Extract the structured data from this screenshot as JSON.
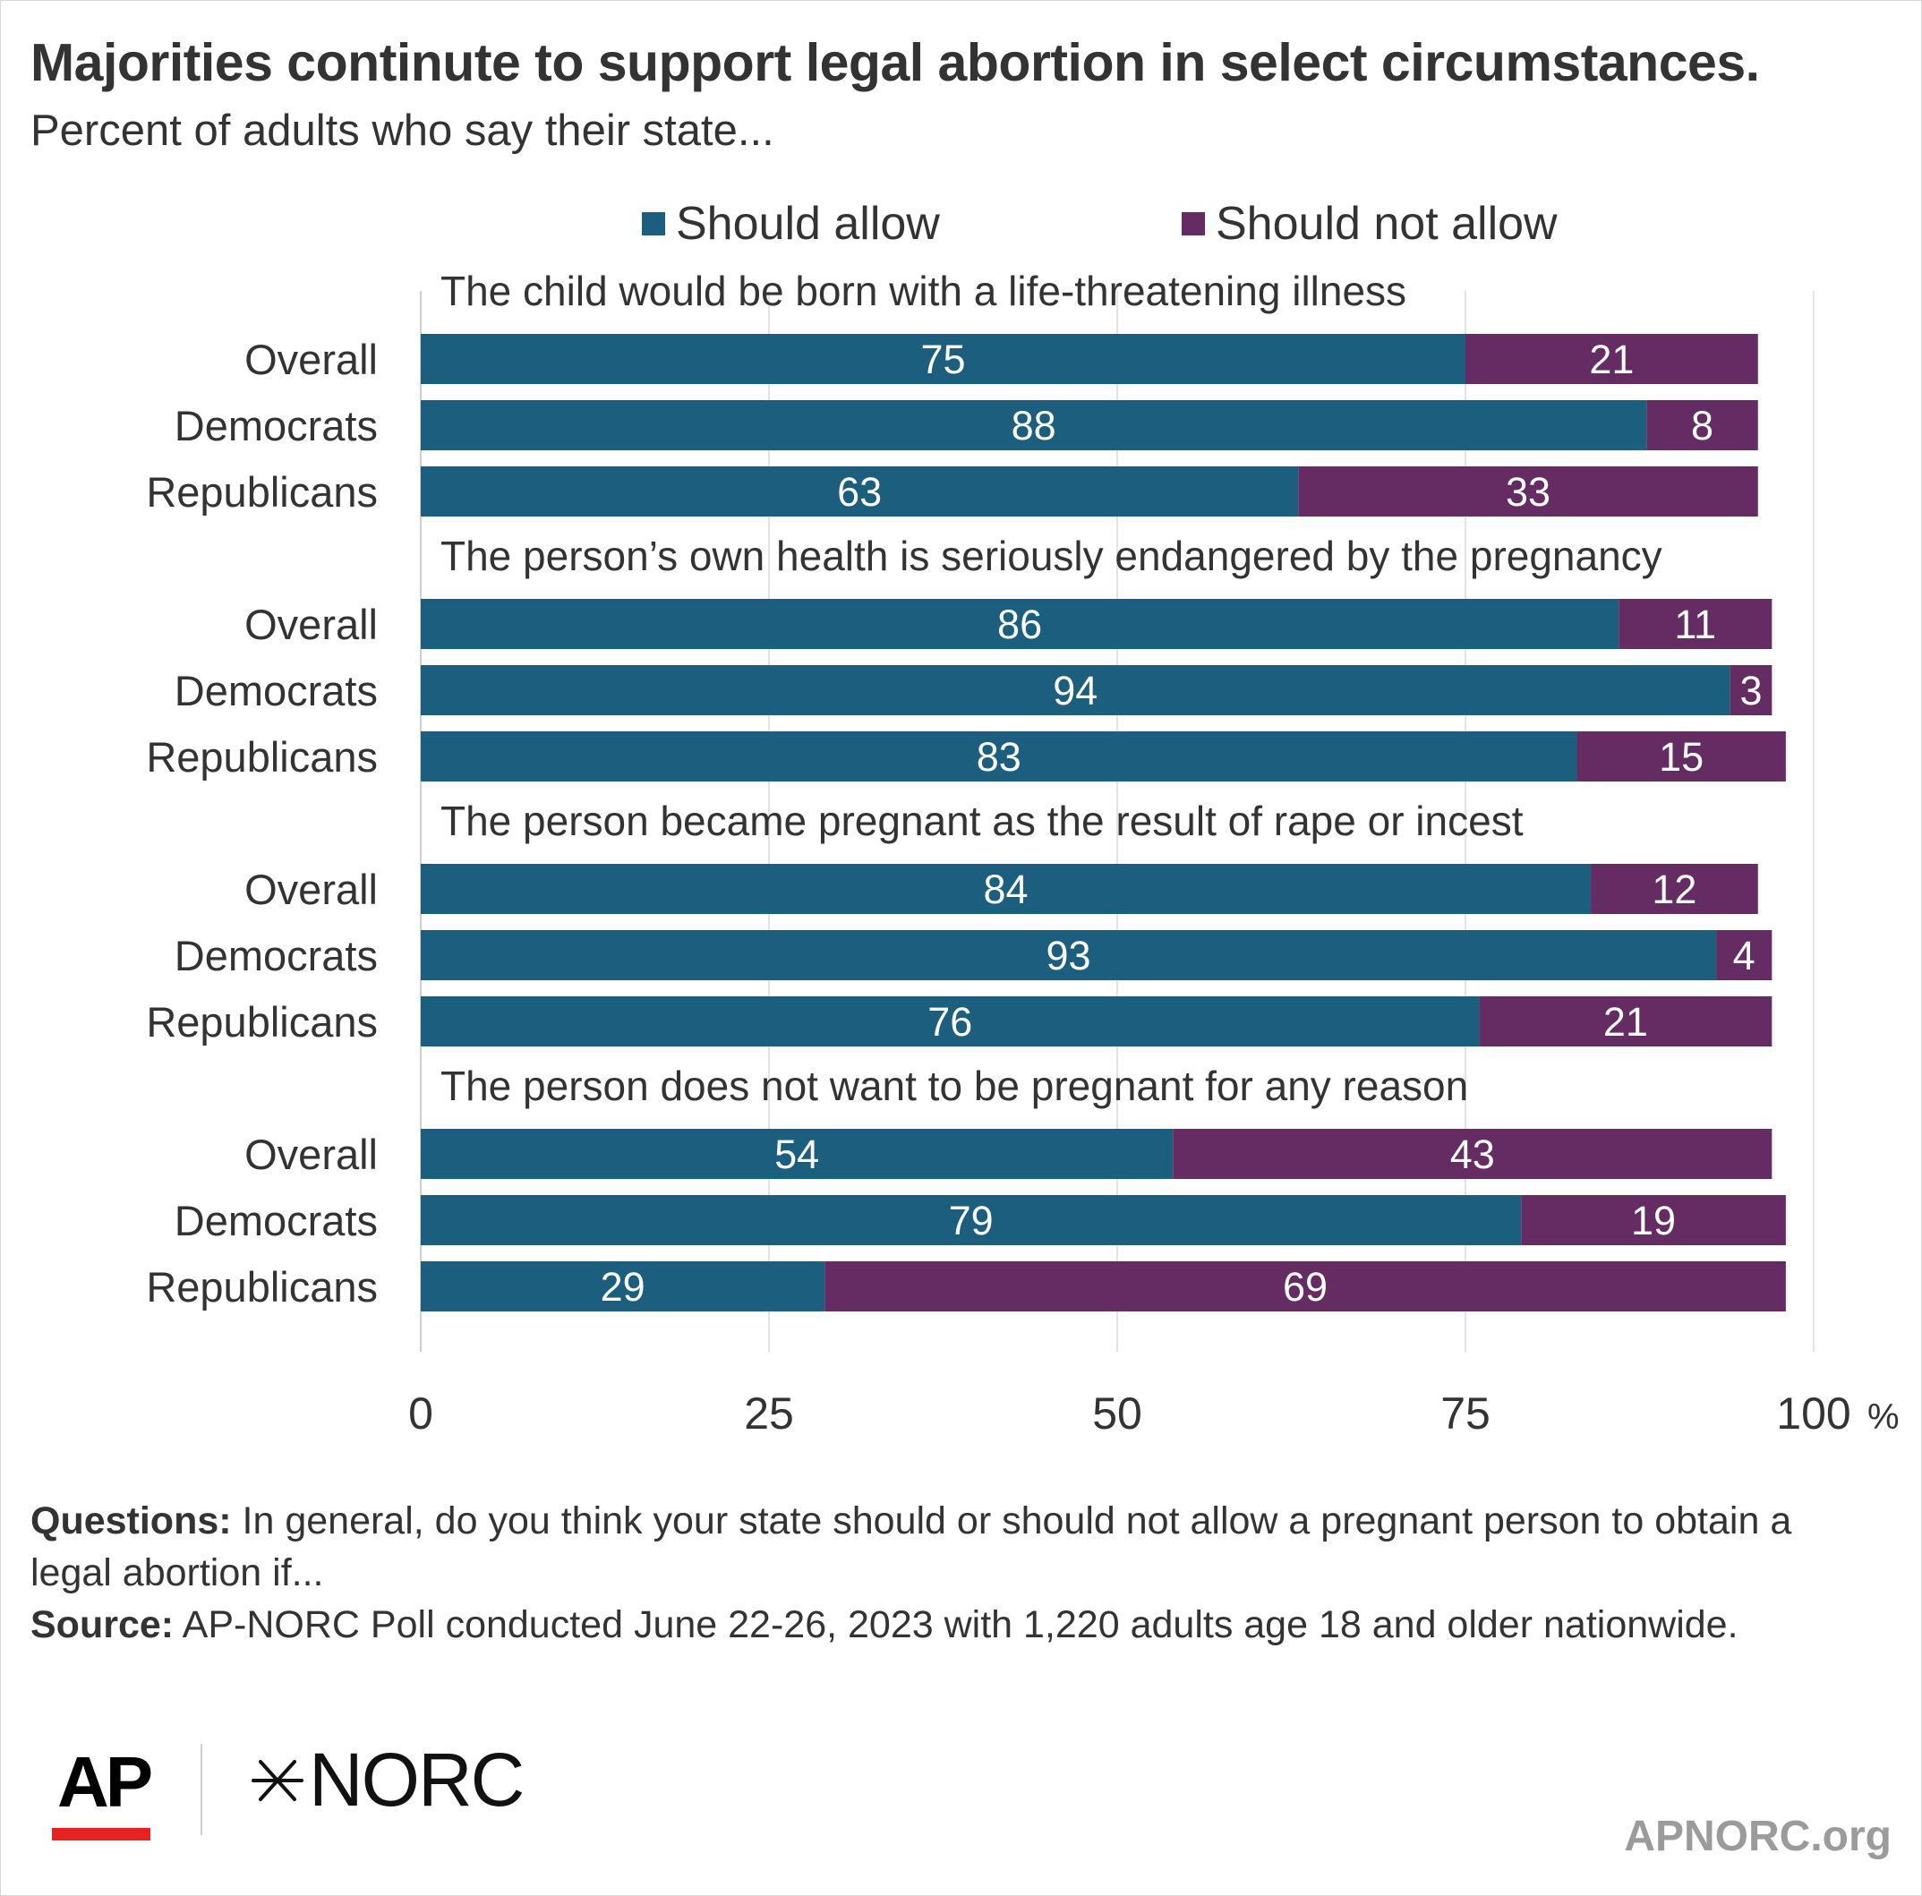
{
  "title": "Majorities continute to support legal abortion in select circumstances.",
  "subtitle": "Percent of adults who say their state...",
  "legend": [
    {
      "label": "Should allow",
      "color": "#1b5e7e"
    },
    {
      "label": "Should not allow",
      "color": "#652b63"
    }
  ],
  "chart_data": {
    "type": "bar",
    "orientation": "horizontal",
    "stacked": true,
    "xlim": [
      0,
      100
    ],
    "x_ticks": [
      "0",
      "25",
      "50",
      "75",
      "100"
    ],
    "x_unit": "%",
    "grid": true,
    "legend_position": "top",
    "groups": [
      {
        "title": "The child would be born with a life-threatening illness",
        "rows": [
          {
            "label": "Overall",
            "should_allow": 75,
            "should_not_allow": 21
          },
          {
            "label": "Democrats",
            "should_allow": 88,
            "should_not_allow": 8
          },
          {
            "label": "Republicans",
            "should_allow": 63,
            "should_not_allow": 33
          }
        ]
      },
      {
        "title": "The person’s own health is seriously endangered by the pregnancy",
        "rows": [
          {
            "label": "Overall",
            "should_allow": 86,
            "should_not_allow": 11
          },
          {
            "label": "Democrats",
            "should_allow": 94,
            "should_not_allow": 3
          },
          {
            "label": "Republicans",
            "should_allow": 83,
            "should_not_allow": 15
          }
        ]
      },
      {
        "title": "The person became pregnant as the result of rape or incest",
        "rows": [
          {
            "label": "Overall",
            "should_allow": 84,
            "should_not_allow": 12
          },
          {
            "label": "Democrats",
            "should_allow": 93,
            "should_not_allow": 4
          },
          {
            "label": "Republicans",
            "should_allow": 76,
            "should_not_allow": 21
          }
        ]
      },
      {
        "title": "The person does not want to be pregnant for any reason",
        "rows": [
          {
            "label": "Overall",
            "should_allow": 54,
            "should_not_allow": 43
          },
          {
            "label": "Democrats",
            "should_allow": 79,
            "should_not_allow": 19
          },
          {
            "label": "Republicans",
            "should_allow": 29,
            "should_not_allow": 69
          }
        ]
      }
    ]
  },
  "notes": {
    "questions_label": "Questions:",
    "questions_text": " In general, do you think your state should or should not allow a pregnant person to obtain a legal abortion if...",
    "source_label": "Source:",
    "source_text": " AP-NORC Poll conducted June 22-26, 2023 with 1,220 adults age 18 and older nationwide."
  },
  "logos": {
    "ap": "AP",
    "norc_mark": "✶",
    "norc": "NORC"
  },
  "site": "APNORC.org"
}
